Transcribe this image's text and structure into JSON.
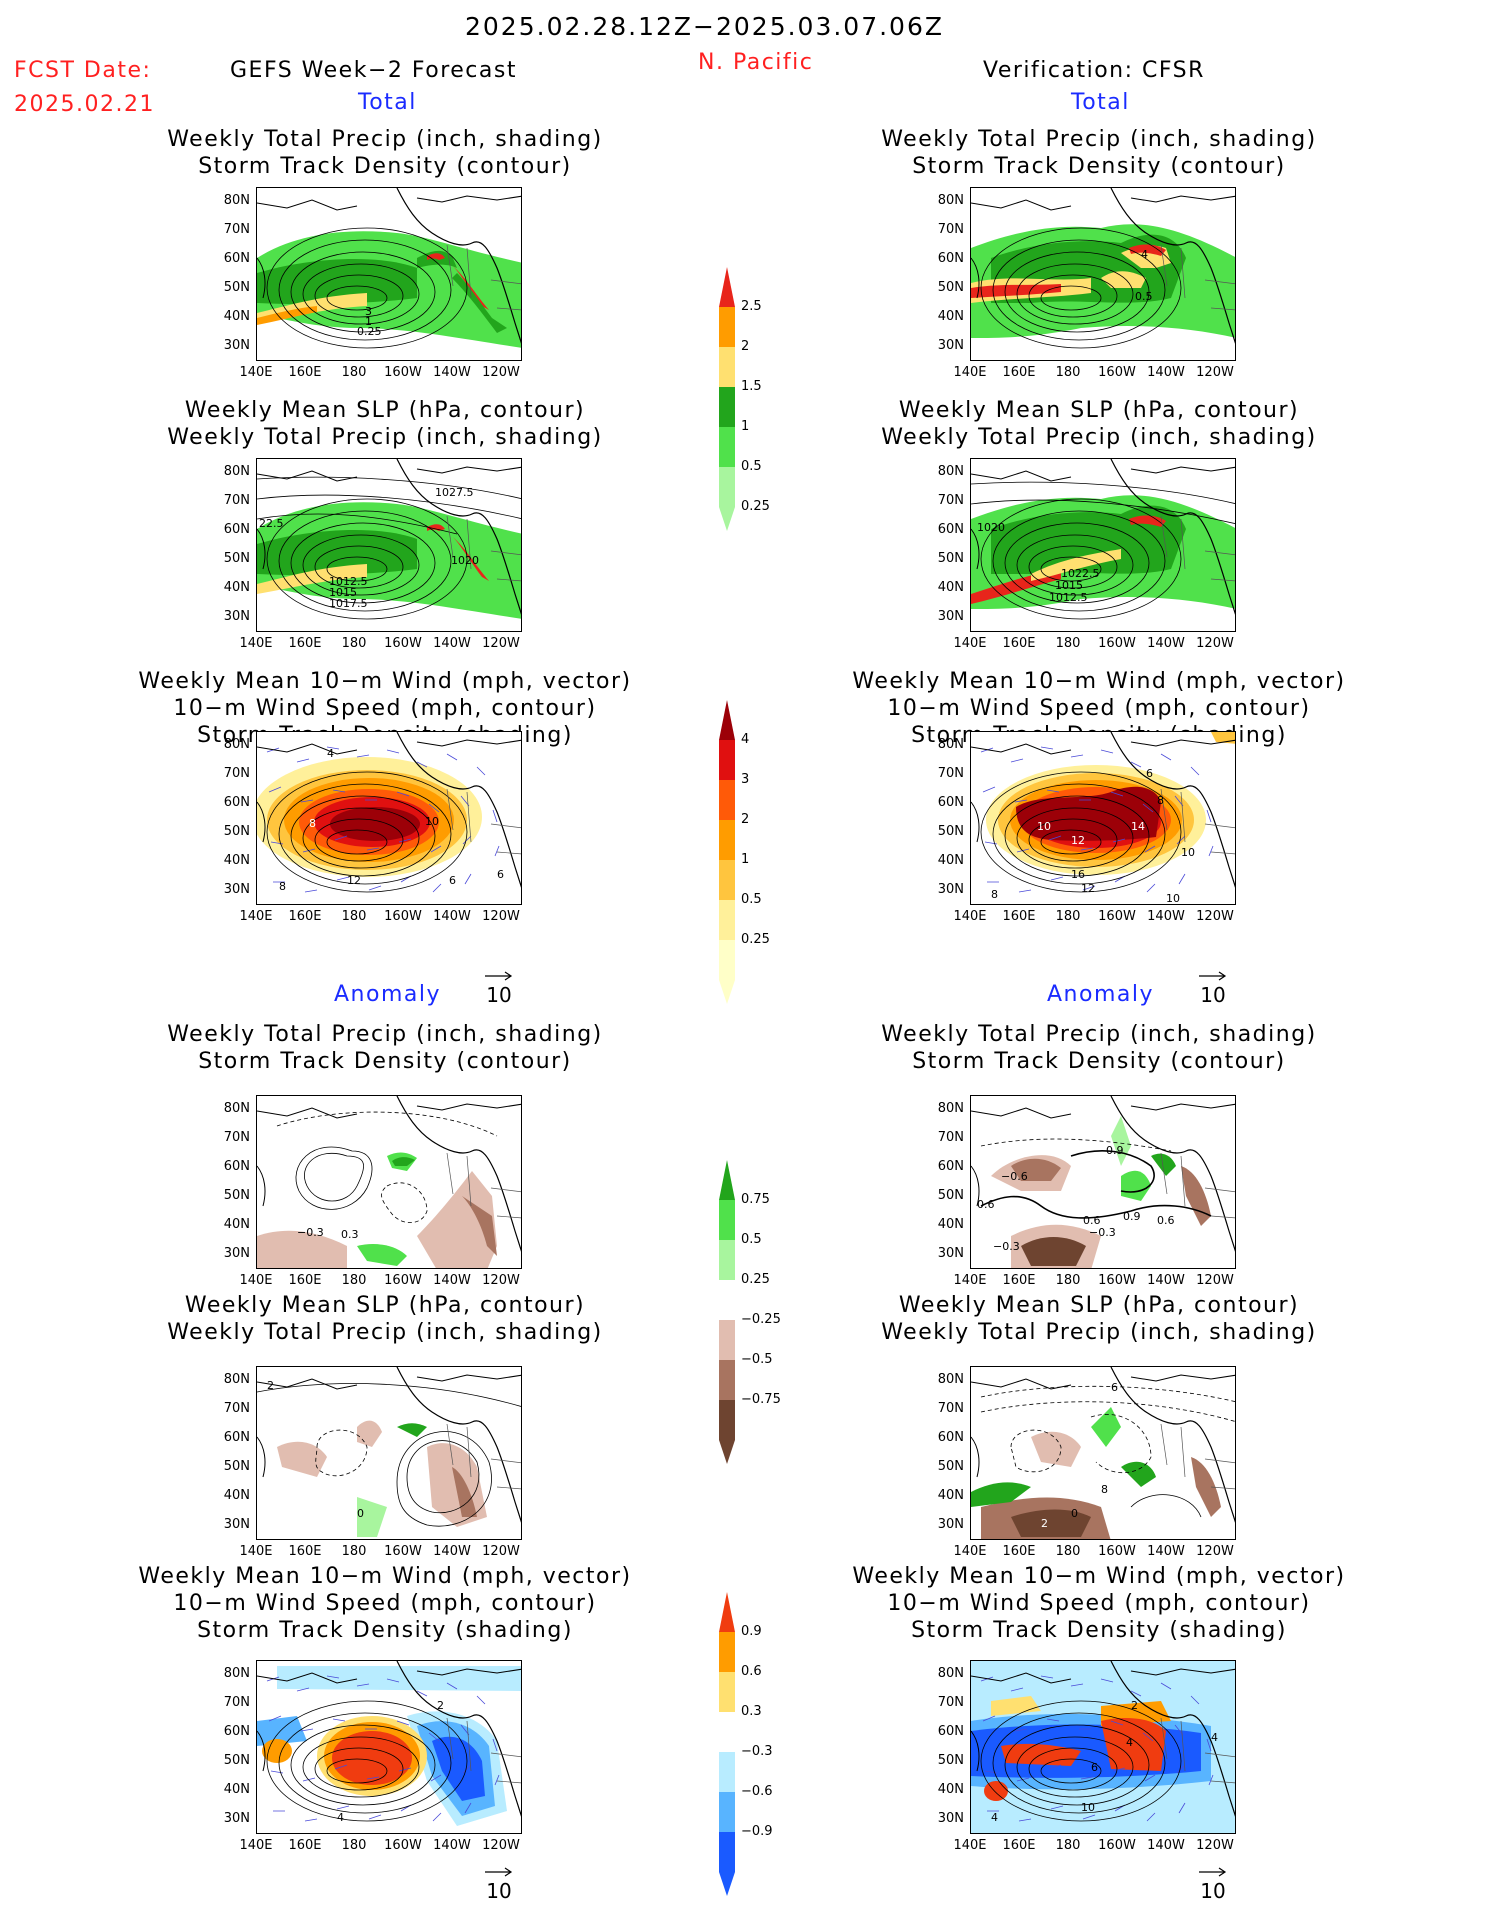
{
  "header": {
    "date_range": "2025.02.28.12Z−2025.03.07.06Z",
    "fcst_label": "FCST Date:",
    "fcst_date": "2025.02.21",
    "left_title": "GEFS Week−2 Forecast",
    "region": "N. Pacific",
    "right_title": "Verification: CFSR"
  },
  "sections": {
    "total": "Total",
    "anomaly": "Anomaly"
  },
  "panel_titles": {
    "precip_track": [
      "Weekly Total Precip (inch, shading)",
      "Storm Track Density (contour)"
    ],
    "slp_precip": [
      "Weekly Mean SLP (hPa, contour)",
      "Weekly Total Precip (inch, shading)"
    ],
    "wind_track": [
      "Weekly Mean 10−m Wind (mph, vector)",
      "10−m Wind Speed (mph, contour)",
      "Storm Track Density (shading)"
    ]
  },
  "axes": {
    "lat_labels": [
      "80N",
      "70N",
      "60N",
      "50N",
      "40N",
      "30N"
    ],
    "lon_labels": [
      "140E",
      "160E",
      "180",
      "160W",
      "140W",
      "120W"
    ]
  },
  "vector_reference": "10",
  "colorbars": {
    "precip_total": {
      "labels": [
        "2.5",
        "2",
        "1.5",
        "1",
        "0.5",
        "0.25"
      ],
      "colors": [
        "#e8251b",
        "#ff9c00",
        "#ffe070",
        "#22a51c",
        "#50e14b",
        "#a8f59e"
      ]
    },
    "track_total": {
      "labels": [
        "4",
        "3",
        "2",
        "1",
        "0.5",
        "0.25"
      ],
      "colors": [
        "#9c0008",
        "#e01010",
        "#ff5a08",
        "#ff9c00",
        "#ffc53e",
        "#fff09a",
        "#ffffc8"
      ]
    },
    "precip_anom": {
      "labels": [
        "0.75",
        "0.5",
        "0.25",
        "−0.25",
        "−0.5",
        "−0.75"
      ],
      "colors": [
        "#22a51c",
        "#50e14b",
        "#a8f59e",
        "#ffffff",
        "#e1bdb0",
        "#a87460",
        "#6e4430"
      ]
    },
    "track_anom": {
      "labels": [
        "0.9",
        "0.6",
        "0.3",
        "−0.3",
        "−0.6",
        "−0.9"
      ],
      "colors": [
        "#f03c10",
        "#ff9c00",
        "#ffe070",
        "#ffffff",
        "#b8ecff",
        "#58b4ff",
        "#1a5aff"
      ]
    }
  },
  "map_labels": {
    "m1": [
      "3",
      "1",
      "0.25"
    ],
    "m2": [
      "0.5",
      "4"
    ],
    "m3": [
      "1027.5",
      "22.5",
      "1020",
      "1012.5",
      "1015",
      "1017.5"
    ],
    "m4": [
      "1020",
      "1022.5",
      "1015",
      "1012.5"
    ],
    "m5": [
      "4",
      "8",
      "10",
      "12",
      "6",
      "6",
      "8"
    ],
    "m6": [
      "6",
      "8",
      "10",
      "12",
      "14",
      "10",
      "16",
      "8",
      "10",
      "12"
    ],
    "m7": [
      "−0.3",
      "0.3"
    ],
    "m8": [
      "0.9",
      "−0.6",
      "0.6",
      "−0.3",
      "0.6",
      "−0.3",
      "0.9",
      "0.6"
    ],
    "m9": [
      "2",
      "0"
    ],
    "m10": [
      "6",
      "8",
      "2",
      "0"
    ],
    "m11": [
      "2",
      "4"
    ],
    "m12": [
      "2",
      "4",
      "6",
      "4",
      "10",
      "4"
    ]
  }
}
